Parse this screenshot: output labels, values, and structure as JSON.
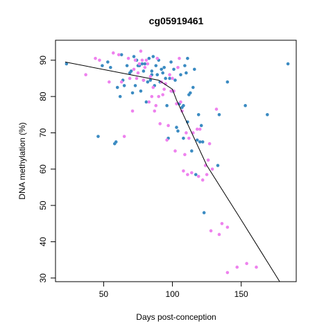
{
  "chart_data": {
    "type": "scatter",
    "title": "cg05919461",
    "xlabel": "Days post-conception",
    "ylabel": "DNA methylation (%)",
    "xlim": [
      15,
      190
    ],
    "ylim": [
      29,
      95.5
    ],
    "xticks": [
      50,
      100,
      150
    ],
    "yticks": [
      30,
      40,
      50,
      60,
      70,
      80,
      90
    ],
    "grid": false,
    "colors": {
      "blue": "#3b8bc2",
      "pink": "#ee82ee",
      "line": "#000000"
    },
    "series": [
      {
        "color": "blue",
        "points": [
          [
            23,
            89
          ],
          [
            46,
            69
          ],
          [
            49,
            88.5
          ],
          [
            53,
            89.5
          ],
          [
            55,
            88
          ],
          [
            58,
            67
          ],
          [
            59,
            67.5
          ],
          [
            60,
            82.5
          ],
          [
            62,
            80
          ],
          [
            63,
            91.5
          ],
          [
            64,
            84.5
          ],
          [
            65,
            83
          ],
          [
            67,
            88.5
          ],
          [
            69,
            86.5
          ],
          [
            70,
            87
          ],
          [
            71,
            81
          ],
          [
            72,
            91
          ],
          [
            73,
            83
          ],
          [
            74,
            90
          ],
          [
            75,
            88.5
          ],
          [
            76,
            88.5
          ],
          [
            77,
            81.5
          ],
          [
            78,
            89
          ],
          [
            79,
            84.5
          ],
          [
            80,
            89
          ],
          [
            81,
            78.5
          ],
          [
            82,
            84
          ],
          [
            83,
            90.5
          ],
          [
            84,
            84.5
          ],
          [
            85,
            87
          ],
          [
            86,
            91
          ],
          [
            87,
            83
          ],
          [
            88,
            88.5
          ],
          [
            89,
            86
          ],
          [
            90,
            90
          ],
          [
            91,
            84
          ],
          [
            92,
            87.5
          ],
          [
            93,
            86.5
          ],
          [
            94,
            88
          ],
          [
            95,
            85
          ],
          [
            96,
            77.5
          ],
          [
            97,
            68.5
          ],
          [
            98,
            85
          ],
          [
            99,
            89.5
          ],
          [
            100,
            81.5
          ],
          [
            101,
            87.5
          ],
          [
            102,
            84.5
          ],
          [
            103,
            71.5
          ],
          [
            104,
            70.5
          ],
          [
            105,
            78
          ],
          [
            106,
            86
          ],
          [
            107,
            77
          ],
          [
            108,
            77.5
          ],
          [
            109,
            88.5
          ],
          [
            110,
            86.5
          ],
          [
            111,
            90.5
          ],
          [
            112,
            80.5
          ],
          [
            113,
            81
          ],
          [
            114,
            65
          ],
          [
            115,
            82.5
          ],
          [
            116,
            87.5
          ],
          [
            117,
            58.5
          ],
          [
            118,
            68
          ],
          [
            119,
            75
          ],
          [
            120,
            67.5
          ],
          [
            121,
            72
          ],
          [
            122,
            67.5
          ],
          [
            123,
            48
          ],
          [
            133,
            61
          ],
          [
            134,
            75
          ],
          [
            140,
            84
          ],
          [
            153,
            77.5
          ],
          [
            169,
            75
          ],
          [
            184,
            89
          ],
          [
            108,
            68.5
          ],
          [
            111,
            73
          ],
          [
            85,
            86
          ],
          [
            79,
            87
          ]
        ]
      },
      {
        "color": "pink",
        "points": [
          [
            37,
            86
          ],
          [
            44,
            90.5
          ],
          [
            47,
            90
          ],
          [
            54,
            84
          ],
          [
            57,
            92
          ],
          [
            61,
            91.5
          ],
          [
            63,
            84
          ],
          [
            65,
            69
          ],
          [
            68,
            90.5
          ],
          [
            69,
            85
          ],
          [
            71,
            76
          ],
          [
            72,
            87.5
          ],
          [
            73,
            90
          ],
          [
            74,
            85
          ],
          [
            75,
            86.5
          ],
          [
            76,
            89
          ],
          [
            77,
            92.5
          ],
          [
            78,
            90
          ],
          [
            79,
            84.5
          ],
          [
            80,
            88
          ],
          [
            81,
            90
          ],
          [
            82,
            89
          ],
          [
            83,
            78.5
          ],
          [
            84,
            85.5
          ],
          [
            85,
            80
          ],
          [
            86,
            82.5
          ],
          [
            87,
            76
          ],
          [
            88,
            77.5
          ],
          [
            89,
            90.5
          ],
          [
            90,
            80
          ],
          [
            91,
            72.5
          ],
          [
            92,
            84
          ],
          [
            93,
            80.5
          ],
          [
            94,
            82
          ],
          [
            95,
            83.5
          ],
          [
            96,
            68
          ],
          [
            97,
            72
          ],
          [
            98,
            86
          ],
          [
            99,
            81.5
          ],
          [
            100,
            85
          ],
          [
            101,
            81.5
          ],
          [
            102,
            65
          ],
          [
            103,
            78
          ],
          [
            104,
            88
          ],
          [
            105,
            90.5
          ],
          [
            106,
            78.5
          ],
          [
            107,
            76
          ],
          [
            108,
            59.5
          ],
          [
            109,
            64
          ],
          [
            110,
            70
          ],
          [
            111,
            58.5
          ],
          [
            112,
            68.5
          ],
          [
            114,
            59
          ],
          [
            115,
            70
          ],
          [
            118,
            71
          ],
          [
            119,
            58
          ],
          [
            120,
            71
          ],
          [
            122,
            57
          ],
          [
            124,
            61
          ],
          [
            125,
            58.5
          ],
          [
            126,
            62.5
          ],
          [
            127,
            67
          ],
          [
            128,
            43
          ],
          [
            129,
            60
          ],
          [
            132,
            76.5
          ],
          [
            134,
            42
          ],
          [
            136,
            45
          ],
          [
            140,
            31.5
          ],
          [
            140,
            44
          ],
          [
            147,
            33
          ],
          [
            154,
            34
          ],
          [
            161,
            33
          ]
        ]
      }
    ],
    "fit_line": [
      [
        22,
        89.5
      ],
      [
        90,
        84.5
      ],
      [
        100,
        82
      ],
      [
        103,
        79
      ],
      [
        125,
        61
      ],
      [
        150,
        46
      ],
      [
        178,
        29
      ]
    ]
  }
}
